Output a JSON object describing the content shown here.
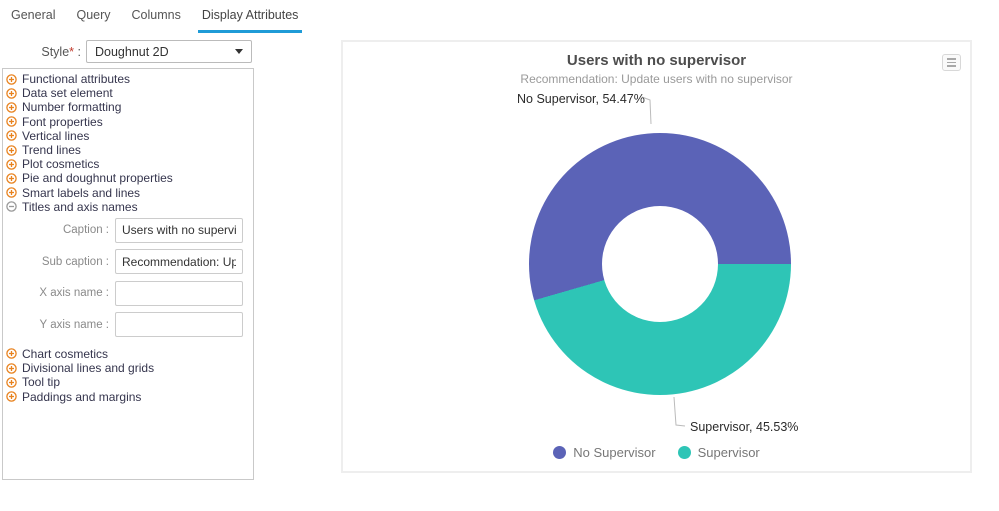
{
  "tabs": [
    {
      "label": "General",
      "active": false
    },
    {
      "label": "Query",
      "active": false
    },
    {
      "label": "Columns",
      "active": false
    },
    {
      "label": "Display Attributes",
      "active": true
    }
  ],
  "style_field": {
    "label": "Style",
    "required_mark": "*",
    "separator": ":",
    "value": "Doughnut 2D"
  },
  "attributes_panel": {
    "collapsed_items_top": [
      "Functional attributes",
      "Data set element",
      "Number formatting",
      "Font properties",
      "Vertical lines",
      "Trend lines",
      "Plot cosmetics",
      "Pie and doughnut properties",
      "Smart labels and lines"
    ],
    "expanded_item": "Titles and axis names",
    "fields": [
      {
        "label": "Caption",
        "value": "Users with no supervisor"
      },
      {
        "label": "Sub caption",
        "value": "Recommendation: Update users with no supervisor"
      },
      {
        "label": "X axis name",
        "value": ""
      },
      {
        "label": "Y axis name",
        "value": ""
      }
    ],
    "collapsed_items_bottom": [
      "Chart cosmetics",
      "Divisional lines and grids",
      "Tool tip",
      "Paddings and margins"
    ]
  },
  "chart_data": {
    "type": "pie",
    "variant": "doughnut",
    "title": "Users with no supervisor",
    "subtitle": "Recommendation: Update users with no supervisor",
    "categories": [
      "No Supervisor",
      "Supervisor"
    ],
    "values": [
      54.47,
      45.53
    ],
    "unit": "%",
    "colors": [
      "#5b63b7",
      "#2ec5b6"
    ],
    "data_labels": [
      "No Supervisor, 54.47%",
      "Supervisor, 45.53%"
    ],
    "legend": [
      "No Supervisor",
      "Supervisor"
    ],
    "legend_position": "bottom",
    "start_angle_deg": 90,
    "direction": "counterclockwise"
  },
  "ui_colors": {
    "tab_underline": "#1f9bd7",
    "expand_icon": "#e8821e",
    "collapse_icon": "#999999",
    "connector_line": "#bbbbbb"
  }
}
